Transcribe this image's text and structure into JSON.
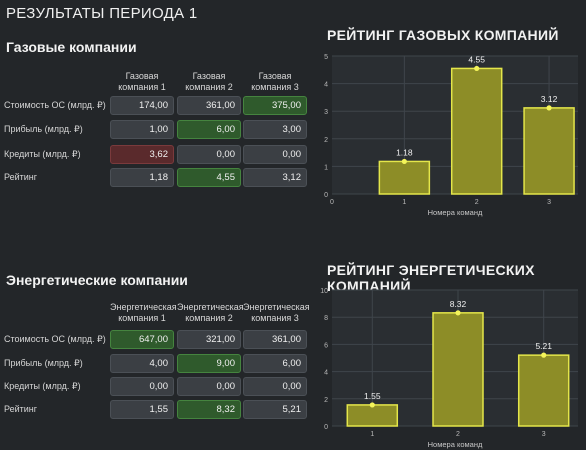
{
  "page_title": "РЕЗУЛЬТАТЫ ПЕРИОДА 1",
  "gas": {
    "title": "Газовые компании",
    "columns": [
      [
        "Газовая",
        "компания 1"
      ],
      [
        "Газовая",
        "компания 2"
      ],
      [
        "Газовая",
        "компания 3"
      ]
    ],
    "rows": [
      {
        "label": "Стоимость ОС (млрд. ₽)",
        "values": [
          "174,00",
          "361,00",
          "375,00"
        ],
        "states": [
          "",
          "",
          "green"
        ]
      },
      {
        "label": "Прибыль (млрд. ₽)",
        "values": [
          "1,00",
          "6,00",
          "3,00"
        ],
        "states": [
          "",
          "green",
          ""
        ]
      },
      {
        "label": "Кредиты (млрд. ₽)",
        "values": [
          "3,62",
          "0,00",
          "0,00"
        ],
        "states": [
          "red",
          "",
          ""
        ]
      },
      {
        "label": "Рейтинг",
        "values": [
          "1,18",
          "4,55",
          "3,12"
        ],
        "states": [
          "",
          "green",
          ""
        ]
      }
    ]
  },
  "energy": {
    "title": "Энергетические компании",
    "columns": [
      [
        "Энергетическая",
        "компания 1"
      ],
      [
        "Энергетическая",
        "компания 2"
      ],
      [
        "Энергетическая",
        "компания 3"
      ]
    ],
    "rows": [
      {
        "label": "Стоимость ОС (млрд. ₽)",
        "values": [
          "647,00",
          "321,00",
          "361,00"
        ],
        "states": [
          "green",
          "",
          ""
        ]
      },
      {
        "label": "Прибыль (млрд. ₽)",
        "values": [
          "4,00",
          "9,00",
          "6,00"
        ],
        "states": [
          "",
          "green",
          ""
        ]
      },
      {
        "label": "Кредиты (млрд. ₽)",
        "values": [
          "0,00",
          "0,00",
          "0,00"
        ],
        "states": [
          "",
          "",
          ""
        ]
      },
      {
        "label": "Рейтинг",
        "values": [
          "1,55",
          "8,32",
          "5,21"
        ],
        "states": [
          "",
          "green",
          ""
        ]
      }
    ]
  },
  "colors": {
    "bar_fill": "#8d8d27",
    "bar_stroke": "#e4e64a",
    "point": "#f4f45a",
    "green_cell": "#2f5a2c",
    "red_cell": "#5a2a2c"
  },
  "chart_data": [
    {
      "type": "bar",
      "title": "РЕЙТИНГ ГАЗОВЫХ КОМПАНИЙ",
      "categories": [
        "1",
        "2",
        "3"
      ],
      "values": [
        1.18,
        4.55,
        3.12
      ],
      "data_labels": [
        "1.18",
        "4.55",
        "3.12"
      ],
      "xlabel": "Номера команд",
      "ylabel": "",
      "ylim": [
        0,
        5
      ],
      "yticks": [
        "0",
        "1",
        "2",
        "3",
        "4",
        "5"
      ],
      "xticks": [
        "0",
        "1",
        "2",
        "3"
      ],
      "grid": true
    },
    {
      "type": "bar",
      "title": "РЕЙТИНГ ЭНЕРГЕТИЧЕСКИХ КОМПАНИЙ",
      "categories": [
        "1",
        "2",
        "3"
      ],
      "values": [
        1.55,
        8.32,
        5.21
      ],
      "data_labels": [
        "1.55",
        "8.32",
        "5.21"
      ],
      "xlabel": "Номера команд",
      "ylabel": "",
      "ylim": [
        0,
        10
      ],
      "yticks": [
        "0",
        "2",
        "4",
        "6",
        "8",
        "10"
      ],
      "xticks": [
        "1",
        "2",
        "3"
      ],
      "grid": true
    }
  ]
}
